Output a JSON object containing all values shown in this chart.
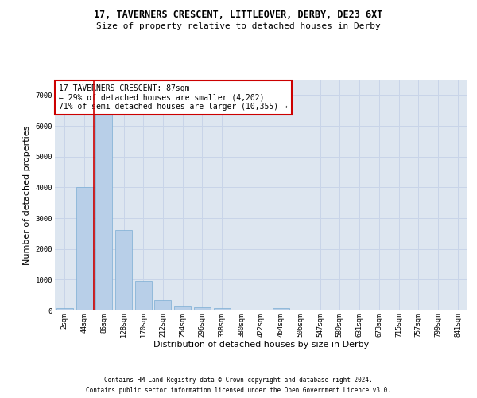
{
  "title": "17, TAVERNERS CRESCENT, LITTLEOVER, DERBY, DE23 6XT",
  "subtitle": "Size of property relative to detached houses in Derby",
  "xlabel": "Distribution of detached houses by size in Derby",
  "ylabel": "Number of detached properties",
  "footnote1": "Contains HM Land Registry data © Crown copyright and database right 2024.",
  "footnote2": "Contains public sector information licensed under the Open Government Licence v3.0.",
  "annotation_line1": "17 TAVERNERS CRESCENT: 87sqm",
  "annotation_line2": "← 29% of detached houses are smaller (4,202)",
  "annotation_line3": "71% of semi-detached houses are larger (10,355) →",
  "bin_labels": [
    "2sqm",
    "44sqm",
    "86sqm",
    "128sqm",
    "170sqm",
    "212sqm",
    "254sqm",
    "296sqm",
    "338sqm",
    "380sqm",
    "422sqm",
    "464sqm",
    "506sqm",
    "547sqm",
    "589sqm",
    "631sqm",
    "673sqm",
    "715sqm",
    "757sqm",
    "799sqm",
    "841sqm"
  ],
  "bar_values": [
    70,
    4000,
    6600,
    2600,
    950,
    325,
    120,
    100,
    80,
    0,
    0,
    80,
    0,
    0,
    0,
    0,
    0,
    0,
    0,
    0,
    0
  ],
  "bar_color": "#b8cfe8",
  "bar_edge_color": "#7aadd4",
  "vline_color": "#cc0000",
  "annotation_box_color": "#cc0000",
  "ylim": [
    0,
    7500
  ],
  "yticks": [
    0,
    1000,
    2000,
    3000,
    4000,
    5000,
    6000,
    7000
  ],
  "grid_color": "#c8d4e8",
  "background_color": "#dde6f0",
  "property_bin_index": 2,
  "title_fontsize": 8.5,
  "subtitle_fontsize": 8,
  "ylabel_fontsize": 8,
  "xlabel_fontsize": 8,
  "tick_fontsize": 6,
  "footnote_fontsize": 5.5,
  "annotation_fontsize": 7
}
